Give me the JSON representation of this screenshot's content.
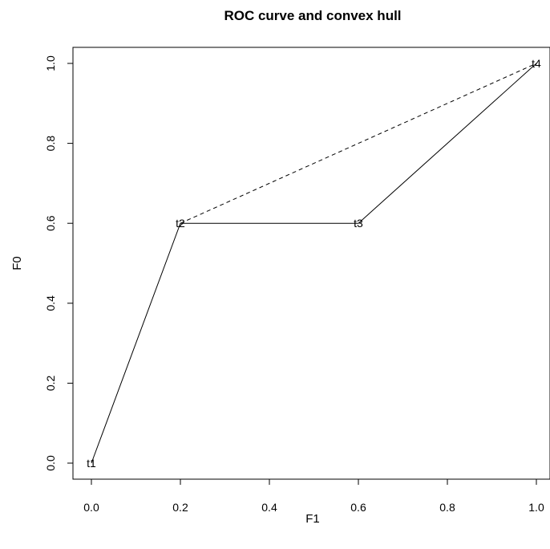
{
  "chart_data": {
    "type": "line",
    "title": "ROC curve and convex hull",
    "xlabel": "F1",
    "ylabel": "F0",
    "xlim": [
      0,
      1
    ],
    "ylim": [
      0,
      1
    ],
    "xticks": [
      "0.0",
      "0.2",
      "0.4",
      "0.6",
      "0.8",
      "1.0"
    ],
    "yticks": [
      "0.0",
      "0.2",
      "0.4",
      "0.6",
      "0.8",
      "1.0"
    ],
    "grid": false,
    "series": [
      {
        "style": "solid",
        "x": [
          0.0,
          0.2,
          0.6,
          1.0
        ],
        "y": [
          0.0,
          0.6,
          0.6,
          1.0
        ]
      },
      {
        "style": "dashed",
        "x": [
          0.2,
          1.0
        ],
        "y": [
          0.6,
          1.0
        ]
      }
    ],
    "point_labels": [
      {
        "text": "t1",
        "x": 0.0,
        "y": 0.0
      },
      {
        "text": "t2",
        "x": 0.2,
        "y": 0.6
      },
      {
        "text": "t3",
        "x": 0.6,
        "y": 0.6
      },
      {
        "text": "t4",
        "x": 1.0,
        "y": 1.0
      }
    ]
  }
}
